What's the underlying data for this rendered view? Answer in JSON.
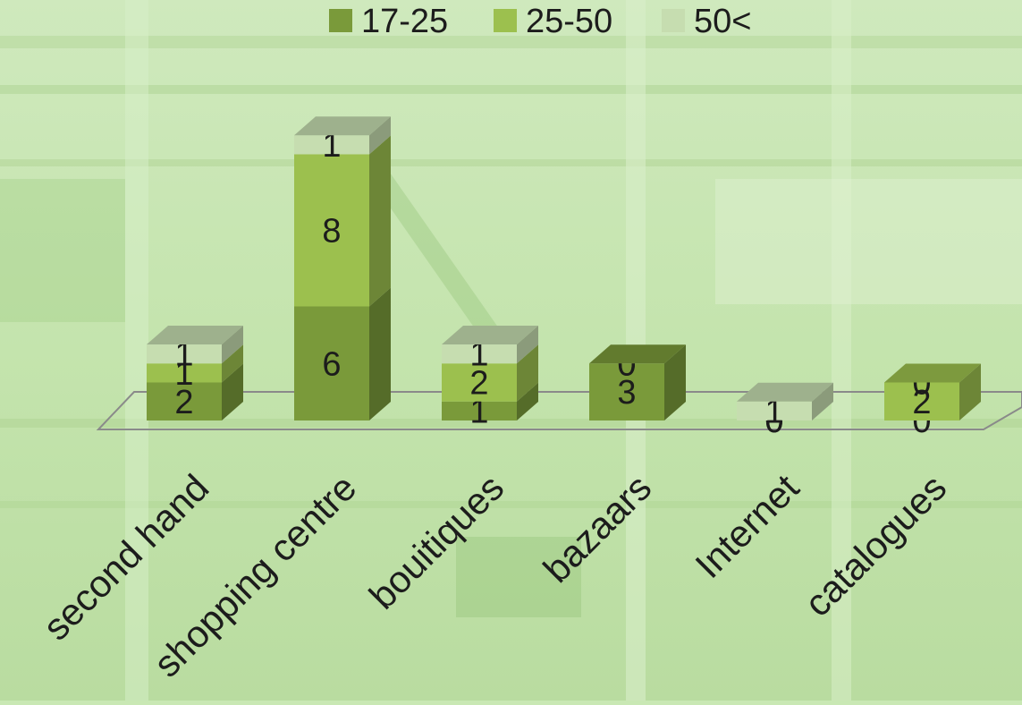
{
  "chart_data": {
    "type": "bar",
    "stacked": true,
    "three_d": true,
    "categories": [
      "second hand",
      "shopping centre",
      "bouitiques",
      "bazaars",
      "Internet",
      "catalogues"
    ],
    "series": [
      {
        "name": "17-25",
        "color": "#7a9a3a",
        "values": [
          2,
          6,
          1,
          3,
          0,
          0
        ]
      },
      {
        "name": "25-50",
        "color": "#9cc04e",
        "values": [
          1,
          8,
          2,
          0,
          0,
          2
        ]
      },
      {
        "name": "50<",
        "color": "#c6ddb0",
        "values": [
          1,
          1,
          1,
          0,
          1,
          0
        ]
      }
    ],
    "legend_position": "top-center",
    "gridlines": false,
    "background": "photo of a multi-level shopping mall interior with green tint"
  }
}
